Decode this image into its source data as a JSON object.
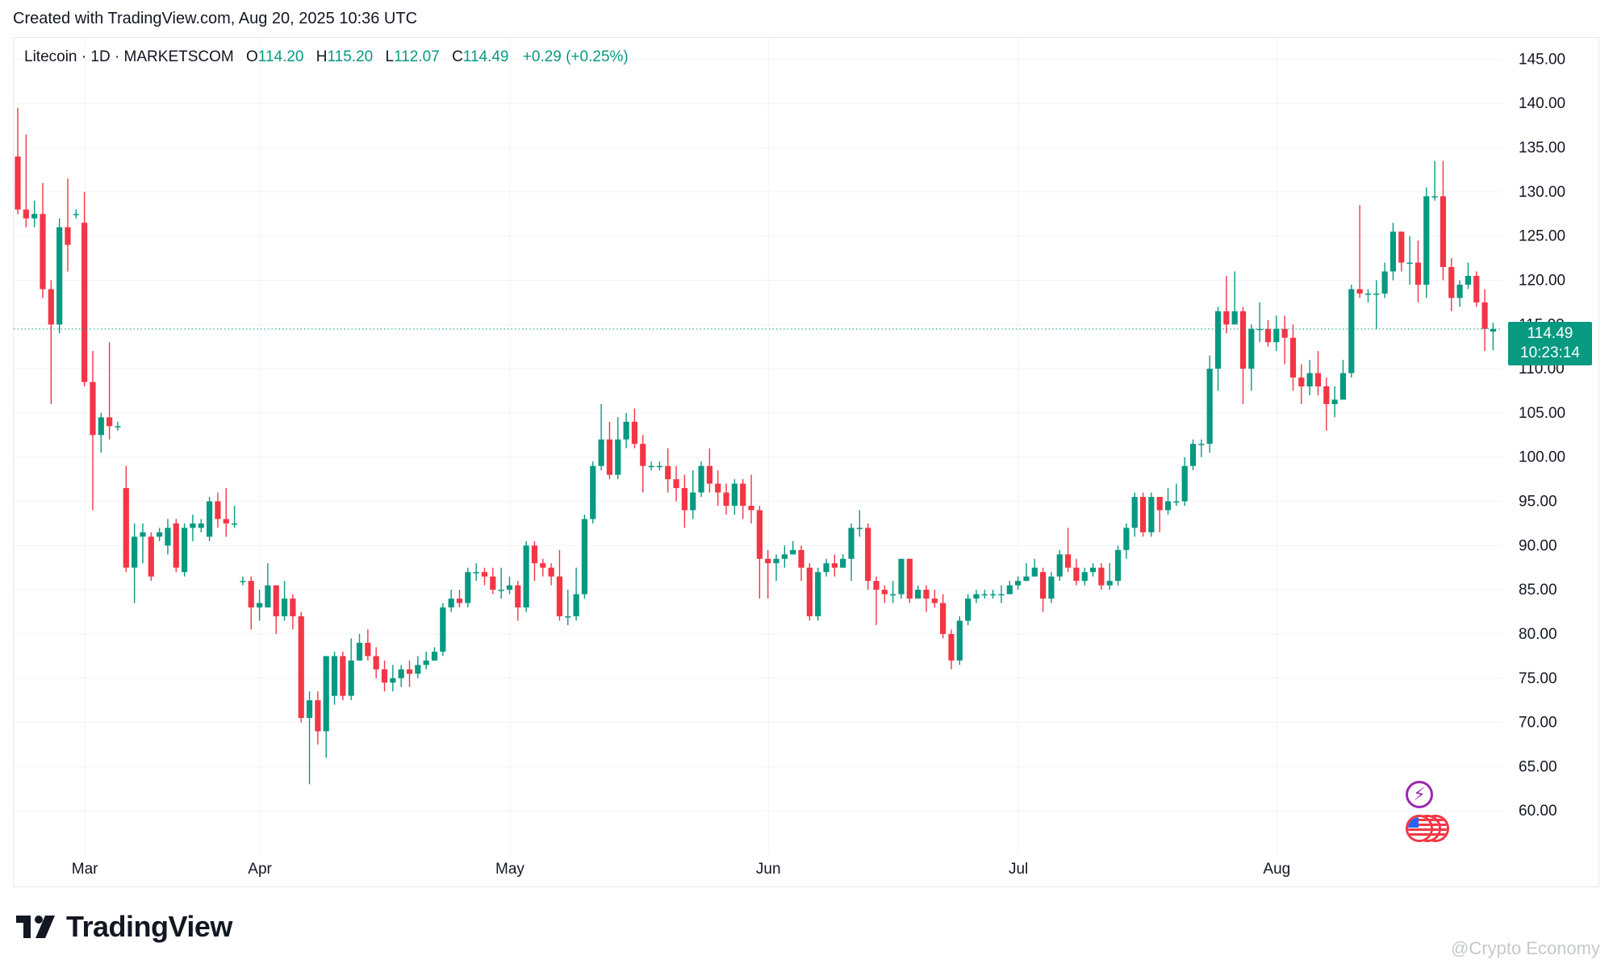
{
  "header": {
    "created": "Created with TradingView.com, Aug 20, 2025 10:36 UTC"
  },
  "legend": {
    "symbol": "Litecoin · 1D · MARKETSCOM",
    "open_label": "O",
    "open": "114.20",
    "high_label": "H",
    "high": "115.20",
    "low_label": "L",
    "low": "112.07",
    "close_label": "C",
    "close": "114.49",
    "change": "+0.29 (+0.25%)"
  },
  "price_tag": {
    "price": "114.49",
    "countdown": "10:23:14"
  },
  "logo": {
    "text": "TradingView"
  },
  "watermark": {
    "text": "@Crypto Economy"
  },
  "colors": {
    "up": "#089981",
    "down": "#f23645",
    "grid": "#f0f3fa",
    "axis_text": "#131722",
    "last_price_line": "#089981"
  },
  "icons": {
    "event_icon": "lightning-icon",
    "flag_icon": "us-flag-icon"
  },
  "chart_data": {
    "type": "candlestick",
    "title": "",
    "xlabel": "",
    "ylabel": "",
    "ylim": [
      55,
      147.5
    ],
    "y_ticks": [
      "145.00",
      "140.00",
      "135.00",
      "130.00",
      "125.00",
      "120.00",
      "115.00",
      "110.00",
      "105.00",
      "100.00",
      "95.00",
      "90.00",
      "85.00",
      "80.00",
      "75.00",
      "70.00",
      "65.00",
      "60.00"
    ],
    "x_ticks": [
      {
        "label": "Mar",
        "index": 8
      },
      {
        "label": "Apr",
        "index": 29
      },
      {
        "label": "May",
        "index": 59
      },
      {
        "label": "Jun",
        "index": 90
      },
      {
        "label": "Jul",
        "index": 120
      },
      {
        "label": "Aug",
        "index": 151
      }
    ],
    "last_price": 114.49,
    "grid": true,
    "candles": [
      [
        134,
        128,
        139.5,
        127.5
      ],
      [
        128,
        127,
        136.5,
        126
      ],
      [
        127,
        127.5,
        129,
        126
      ],
      [
        127.5,
        119,
        131,
        118
      ],
      [
        119,
        115,
        120,
        106
      ],
      [
        115,
        126,
        127,
        114
      ],
      [
        126,
        124,
        131.5,
        121
      ],
      [
        127.5,
        127.5,
        128,
        127
      ],
      [
        126.5,
        108.5,
        130,
        108
      ],
      [
        108.5,
        102.5,
        112,
        94
      ],
      [
        102.5,
        104.5,
        105,
        100.5
      ],
      [
        104.5,
        103.5,
        113,
        102
      ],
      [
        103.5,
        103.5,
        104,
        103
      ],
      [
        96.5,
        87.5,
        99,
        87
      ],
      [
        87.5,
        91,
        92.5,
        83.5
      ],
      [
        91,
        91.5,
        92.5,
        88
      ],
      [
        91,
        86.5,
        91.5,
        86
      ],
      [
        91,
        91.5,
        92,
        90.5
      ],
      [
        90,
        92,
        93,
        89
      ],
      [
        92.5,
        87.5,
        93,
        87
      ],
      [
        87,
        92,
        92.5,
        86.5
      ],
      [
        92,
        92.5,
        93.5,
        90.5
      ],
      [
        92,
        92.5,
        93,
        91.5
      ],
      [
        91,
        95,
        95.5,
        90.5
      ],
      [
        95,
        93,
        96,
        92
      ],
      [
        93,
        92.5,
        96.5,
        91
      ],
      [
        92.5,
        92.5,
        94.5,
        92
      ],
      [
        86,
        86,
        86.5,
        85.5
      ],
      [
        86,
        83,
        86.5,
        80.5
      ],
      [
        83,
        83.5,
        85,
        81.5
      ],
      [
        83,
        85.5,
        88,
        83
      ],
      [
        85.5,
        82,
        85.5,
        80
      ],
      [
        82,
        84,
        86,
        81.5
      ],
      [
        84,
        82,
        84.5,
        80.5
      ],
      [
        82,
        70.5,
        82.5,
        70
      ],
      [
        70.5,
        72.5,
        73.5,
        63
      ],
      [
        72.5,
        69,
        73.5,
        67.5
      ],
      [
        69,
        77.5,
        77.5,
        66
      ],
      [
        73,
        77.5,
        78,
        72
      ],
      [
        77.5,
        73,
        78,
        72.5
      ],
      [
        73,
        77,
        79.5,
        72.5
      ],
      [
        77,
        79,
        80,
        77
      ],
      [
        79,
        77.5,
        80.5,
        77
      ],
      [
        77.5,
        76,
        78.5,
        75
      ],
      [
        76,
        74.5,
        77,
        73.5
      ],
      [
        74.5,
        75,
        76.5,
        73.5
      ],
      [
        75,
        76,
        76.5,
        74
      ],
      [
        76,
        75.5,
        77,
        74
      ],
      [
        75.5,
        76.5,
        77.5,
        75
      ],
      [
        76.5,
        77,
        78,
        76
      ],
      [
        77,
        78,
        78.5,
        77
      ],
      [
        78,
        83,
        83.5,
        77.5
      ],
      [
        83,
        84,
        85,
        82.5
      ],
      [
        84,
        83.5,
        85,
        83
      ],
      [
        83.5,
        87,
        87.5,
        83
      ],
      [
        87,
        87,
        88,
        86
      ],
      [
        87,
        86.5,
        87.5,
        85.5
      ],
      [
        86.5,
        85,
        87.5,
        84.5
      ],
      [
        85,
        85,
        87.5,
        84
      ],
      [
        85,
        85.5,
        86.5,
        84.5
      ],
      [
        85.5,
        83,
        86,
        81.5
      ],
      [
        83,
        90,
        90.5,
        82.5
      ],
      [
        90,
        88,
        90.5,
        86
      ],
      [
        88,
        87.5,
        88.5,
        86.5
      ],
      [
        87.5,
        86.5,
        88,
        85.5
      ],
      [
        86.5,
        82,
        89.5,
        81.5
      ],
      [
        82,
        82,
        85,
        81
      ],
      [
        82,
        84.5,
        87.5,
        81.5
      ],
      [
        84.5,
        93,
        93.5,
        84
      ],
      [
        93,
        99,
        99.5,
        92.5
      ],
      [
        99,
        102,
        106,
        98.5
      ],
      [
        102,
        98,
        104,
        97.5
      ],
      [
        98,
        102,
        104.5,
        97.5
      ],
      [
        102,
        104,
        105,
        101
      ],
      [
        104,
        101.5,
        105.5,
        101
      ],
      [
        101.5,
        99,
        102.5,
        96
      ],
      [
        99,
        99,
        99.5,
        98.5
      ],
      [
        99,
        99,
        99.5,
        98.5
      ],
      [
        99,
        97.5,
        101,
        96
      ],
      [
        97.5,
        96.5,
        99,
        95
      ],
      [
        96.5,
        94,
        98,
        92
      ],
      [
        94,
        96,
        98.5,
        93
      ],
      [
        96,
        99,
        99.5,
        95.5
      ],
      [
        99,
        97,
        101,
        96
      ],
      [
        97,
        96,
        98.5,
        94.5
      ],
      [
        96,
        94.5,
        97,
        93.5
      ],
      [
        94.5,
        97,
        97.5,
        93.5
      ],
      [
        97,
        94.5,
        97.5,
        93
      ],
      [
        94.5,
        94,
        98,
        92.5
      ],
      [
        94,
        88.5,
        94.5,
        84
      ],
      [
        88.5,
        88,
        89.5,
        84
      ],
      [
        88,
        88.5,
        89,
        86
      ],
      [
        88.5,
        89,
        90,
        87.5
      ],
      [
        89,
        89.5,
        90.5,
        89
      ],
      [
        89.5,
        87.5,
        90,
        86
      ],
      [
        87.5,
        82,
        88,
        81.5
      ],
      [
        82,
        87,
        87.5,
        81.5
      ],
      [
        87,
        88,
        88.5,
        86.5
      ],
      [
        88,
        87.5,
        89,
        86.5
      ],
      [
        87.5,
        88.5,
        89,
        87.5
      ],
      [
        88.5,
        92,
        92.5,
        86
      ],
      [
        92,
        92,
        94,
        91
      ],
      [
        92,
        86,
        92.5,
        85
      ],
      [
        86,
        85,
        86.5,
        81
      ],
      [
        85,
        84.5,
        85.5,
        83.5
      ],
      [
        84.5,
        84.5,
        86,
        83.5
      ],
      [
        84.5,
        88.5,
        88.5,
        84
      ],
      [
        88.5,
        84,
        88.5,
        83.5
      ],
      [
        84,
        85,
        85.5,
        84
      ],
      [
        85,
        84,
        85.5,
        82.5
      ],
      [
        84,
        83.5,
        85,
        83
      ],
      [
        83.5,
        80,
        84.5,
        79.5
      ],
      [
        80,
        77,
        80.5,
        76
      ],
      [
        77,
        81.5,
        82,
        76.5
      ],
      [
        81.5,
        84,
        84.5,
        81
      ],
      [
        84,
        84.5,
        85,
        83.5
      ],
      [
        84.5,
        84.5,
        85,
        84
      ],
      [
        84.5,
        84.5,
        85,
        84
      ],
      [
        84.5,
        84.5,
        85.5,
        83.5
      ],
      [
        84.5,
        85.5,
        86,
        85
      ],
      [
        85.5,
        86,
        86.5,
        85
      ],
      [
        86,
        86.5,
        88,
        86
      ],
      [
        86.5,
        87.5,
        88.5,
        86.5
      ],
      [
        87,
        84,
        87.5,
        82.5
      ],
      [
        84,
        86.5,
        87,
        83.5
      ],
      [
        86.5,
        89,
        89.5,
        86
      ],
      [
        89,
        87.5,
        92,
        87
      ],
      [
        87.5,
        86,
        88.5,
        85.5
      ],
      [
        86,
        87,
        87.5,
        85.5
      ],
      [
        87,
        87.5,
        88,
        86.5
      ],
      [
        87.5,
        85.5,
        88,
        85
      ],
      [
        85.5,
        86,
        88,
        85
      ],
      [
        86,
        89.5,
        90,
        85.5
      ],
      [
        89.5,
        92,
        92.5,
        88.5
      ],
      [
        92,
        95.5,
        96,
        91
      ],
      [
        95.5,
        91.5,
        96,
        91
      ],
      [
        91.5,
        95.5,
        96,
        91
      ],
      [
        95.5,
        94,
        95.5,
        91.5
      ],
      [
        94,
        95,
        96.5,
        93.5
      ],
      [
        95,
        95,
        97,
        94.5
      ],
      [
        95,
        99,
        100,
        94.5
      ],
      [
        99,
        101.5,
        102,
        98.5
      ],
      [
        101.5,
        101.5,
        102,
        100
      ],
      [
        101.5,
        110,
        111.5,
        100.5
      ],
      [
        110,
        116.5,
        117,
        107.5
      ],
      [
        116.5,
        115,
        120.5,
        114
      ],
      [
        115,
        116.5,
        121,
        116
      ],
      [
        116.5,
        110,
        117,
        106
      ],
      [
        110,
        114.5,
        115,
        107.5
      ],
      [
        114.5,
        114.5,
        117.5,
        113
      ],
      [
        114.5,
        113,
        115.5,
        112.5
      ],
      [
        113,
        114.5,
        116,
        112
      ],
      [
        114.5,
        113.5,
        116,
        110.5
      ],
      [
        113.5,
        109,
        115,
        107.5
      ],
      [
        109,
        108,
        110.5,
        106
      ],
      [
        108,
        109.5,
        111,
        107
      ],
      [
        109.5,
        108,
        112,
        107
      ],
      [
        108,
        106,
        109,
        103
      ],
      [
        106,
        106.5,
        108,
        104.5
      ],
      [
        106.5,
        109.5,
        111,
        106.5
      ],
      [
        109.5,
        119,
        119.5,
        109
      ],
      [
        119,
        118.5,
        128.5,
        118
      ],
      [
        118.5,
        118.5,
        119,
        117.5
      ],
      [
        118.5,
        118.5,
        120,
        114.5
      ],
      [
        118.5,
        121,
        122,
        118
      ],
      [
        121,
        125.5,
        126.5,
        120
      ],
      [
        125.5,
        122,
        125.5,
        121
      ],
      [
        122,
        122,
        125,
        119.5
      ],
      [
        122,
        119.5,
        124.5,
        117.5
      ],
      [
        119.5,
        129.5,
        130.5,
        118
      ],
      [
        129.5,
        129.5,
        133.5,
        129
      ],
      [
        129.5,
        121.5,
        133.5,
        120
      ],
      [
        121.5,
        118,
        122.5,
        116.5
      ],
      [
        118,
        119.5,
        120,
        117
      ],
      [
        119.5,
        120.5,
        122,
        119
      ],
      [
        120.5,
        117.5,
        121,
        117
      ],
      [
        117.5,
        114.5,
        119,
        112
      ],
      [
        114.2,
        114.49,
        115.2,
        112.07
      ]
    ]
  }
}
